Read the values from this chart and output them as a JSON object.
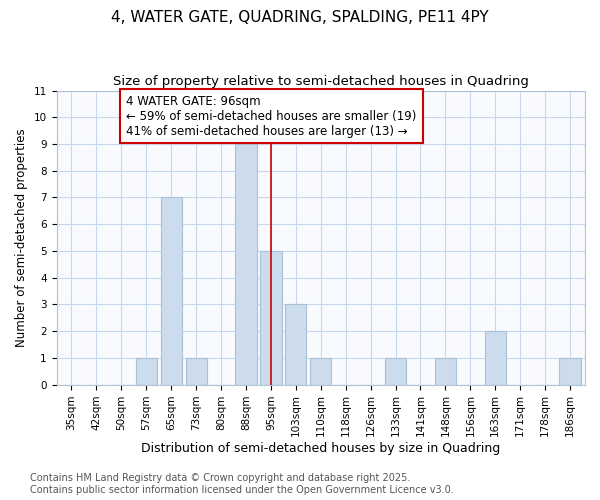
{
  "title": "4, WATER GATE, QUADRING, SPALDING, PE11 4PY",
  "subtitle": "Size of property relative to semi-detached houses in Quadring",
  "xlabel": "Distribution of semi-detached houses by size in Quadring",
  "ylabel": "Number of semi-detached properties",
  "categories": [
    "35sqm",
    "42sqm",
    "50sqm",
    "57sqm",
    "65sqm",
    "73sqm",
    "80sqm",
    "88sqm",
    "95sqm",
    "103sqm",
    "110sqm",
    "118sqm",
    "126sqm",
    "133sqm",
    "141sqm",
    "148sqm",
    "156sqm",
    "163sqm",
    "171sqm",
    "178sqm",
    "186sqm"
  ],
  "values": [
    0,
    0,
    0,
    1,
    7,
    1,
    0,
    9,
    5,
    3,
    1,
    0,
    0,
    1,
    0,
    1,
    0,
    2,
    0,
    0,
    1
  ],
  "bar_color": "#ccdcec",
  "bar_edge_color": "#a8c0d8",
  "vline_index": 8,
  "vline_color": "#cc0000",
  "annotation_line1": "4 WATER GATE: 96sqm",
  "annotation_line2": "← 59% of semi-detached houses are smaller (19)",
  "annotation_line3": "41% of semi-detached houses are larger (13) →",
  "annotation_box_color": "white",
  "annotation_box_edge": "#cc0000",
  "ylim": [
    0,
    11
  ],
  "yticks": [
    0,
    1,
    2,
    3,
    4,
    5,
    6,
    7,
    8,
    9,
    10,
    11
  ],
  "grid_color": "#c8d8ec",
  "background_color": "#ffffff",
  "plot_bg_color": "#f8fafd",
  "footer_text": "Contains HM Land Registry data © Crown copyright and database right 2025.\nContains public sector information licensed under the Open Government Licence v3.0.",
  "title_fontsize": 11,
  "subtitle_fontsize": 9.5,
  "xlabel_fontsize": 9,
  "ylabel_fontsize": 8.5,
  "tick_fontsize": 7.5,
  "annotation_fontsize": 8.5,
  "footer_fontsize": 7
}
